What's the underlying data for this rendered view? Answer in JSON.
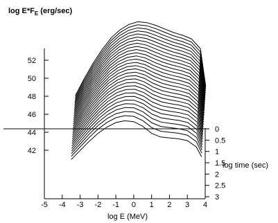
{
  "chart_data": {
    "type": "line",
    "title": "",
    "ylabel": "log E*F",
    "ylabel_sub": "E",
    "ylabel_unit": " (erg/sec)",
    "xlabel": "log E (MeV)",
    "zlabel": "log time (sec)",
    "x_ticks": [
      "-5",
      "-4",
      "-3",
      "-2",
      "-1",
      "0",
      "1",
      "2",
      "3",
      "4"
    ],
    "y_ticks": [
      "42",
      "44",
      "46",
      "48",
      "50",
      "52"
    ],
    "z_ticks": [
      "0",
      "0.5",
      "1",
      "1.5",
      "2",
      "2.5",
      "3"
    ],
    "xlim": [
      -5,
      4
    ],
    "ylim": [
      41,
      53
    ],
    "zlim": [
      0,
      3
    ],
    "series_count": 30,
    "x": [
      -3.5,
      -3.0,
      -2.5,
      -2.0,
      -1.5,
      -1.0,
      -0.5,
      0.0,
      0.5,
      1.0,
      1.5,
      2.0,
      2.5,
      3.0,
      3.5,
      3.8
    ],
    "first_series": {
      "log_time": 0,
      "y": [
        41.9,
        42.9,
        43.9,
        44.8,
        45.5,
        46.0,
        46.2,
        46.1,
        45.6,
        44.8,
        44.4,
        44.3,
        44.2,
        44.0,
        43.3,
        42.2
      ]
    },
    "last_series": {
      "log_time": 3,
      "y": [
        47.0,
        48.9,
        50.6,
        52.1,
        53.4,
        54.3,
        54.9,
        55.2,
        55.1,
        54.8,
        54.4,
        54.0,
        53.7,
        53.3,
        52.2,
        48.0
      ]
    }
  }
}
